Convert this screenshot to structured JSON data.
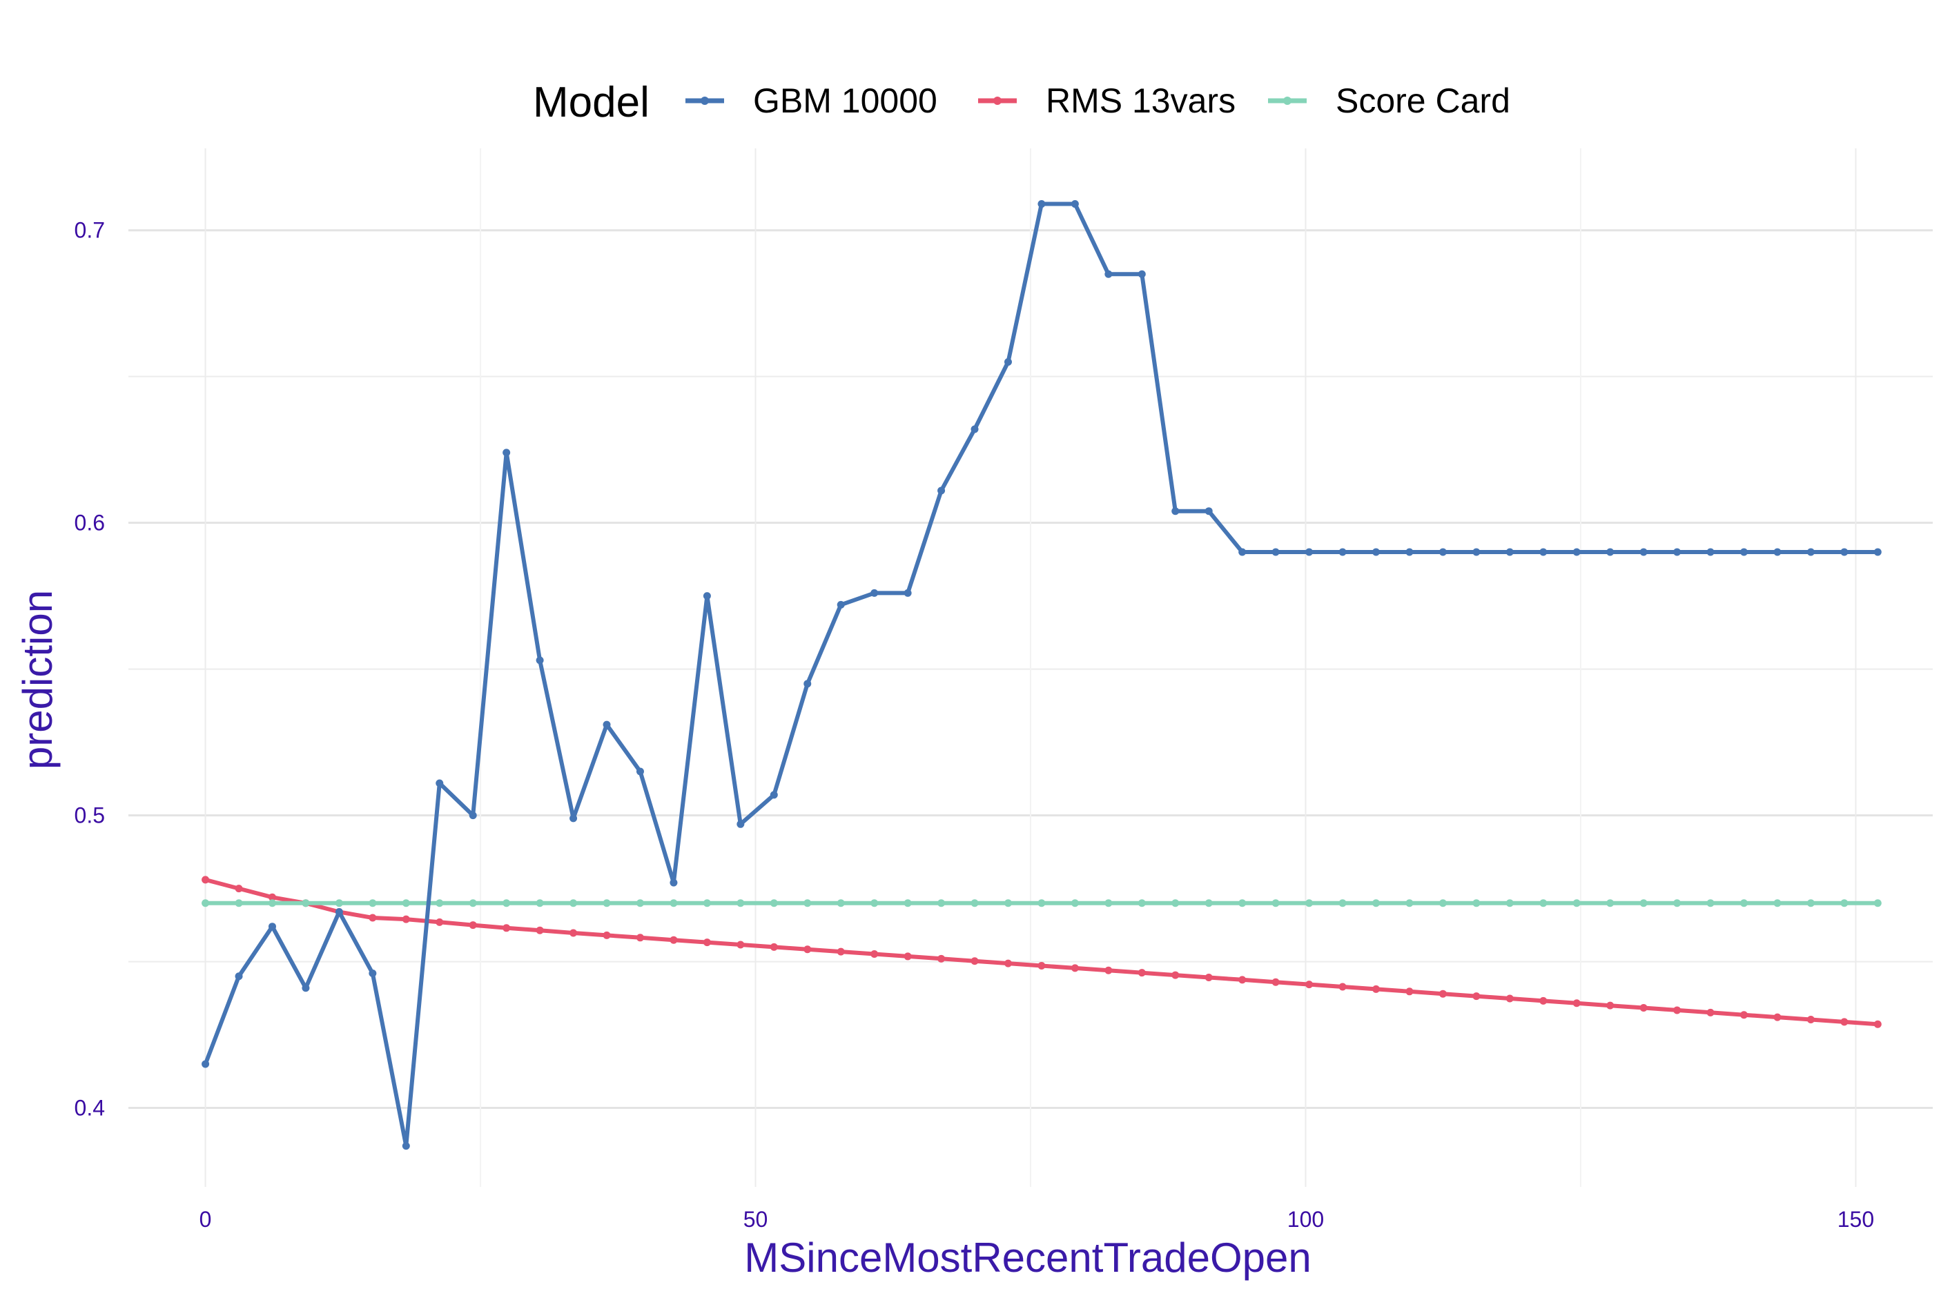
{
  "chart_data": {
    "type": "line",
    "title": "",
    "xlabel": "MSinceMostRecentTradeOpen",
    "ylabel": "prediction",
    "xlim": [
      -7,
      157
    ],
    "ylim": [
      0.373,
      0.728
    ],
    "x_ticks": [
      0,
      50,
      100,
      150
    ],
    "x_tick_labels": [
      "0",
      "50",
      "100",
      "150"
    ],
    "y_ticks": [
      0.4,
      0.5,
      0.6,
      0.7
    ],
    "y_tick_labels": [
      "0.4",
      "0.5",
      "0.6",
      "0.7"
    ],
    "grid": true,
    "legend": {
      "title": "Model",
      "position": "top"
    },
    "x": [
      0,
      3.04,
      6.08,
      9.12,
      12.16,
      15.2,
      18.24,
      21.28,
      24.32,
      27.36,
      30.4,
      33.44,
      36.48,
      39.52,
      42.56,
      45.6,
      48.64,
      51.68,
      54.72,
      57.76,
      60.8,
      63.84,
      66.88,
      69.92,
      72.96,
      76,
      79.04,
      82.08,
      85.12,
      88.16,
      91.2,
      94.24,
      97.28,
      100.32,
      103.36,
      106.4,
      109.44,
      112.48,
      115.52,
      118.56,
      121.6,
      124.64,
      127.68,
      130.72,
      133.76,
      136.8,
      139.84,
      142.88,
      145.92,
      148.96,
      152
    ],
    "series": [
      {
        "name": "GBM 10000",
        "color": "#4575b4",
        "values": [
          0.415,
          0.445,
          0.462,
          0.441,
          0.467,
          0.446,
          0.387,
          0.511,
          0.5,
          0.624,
          0.553,
          0.499,
          0.531,
          0.515,
          0.477,
          0.575,
          0.497,
          0.507,
          0.545,
          0.572,
          0.576,
          0.576,
          0.611,
          0.632,
          0.655,
          0.709,
          0.709,
          0.685,
          0.685,
          0.604,
          0.604,
          0.59,
          0.59,
          0.59,
          0.59,
          0.59,
          0.59,
          0.59,
          0.59,
          0.59,
          0.59,
          0.59,
          0.59,
          0.59,
          0.59,
          0.59,
          0.59,
          0.59,
          0.59,
          0.59,
          0.59
        ]
      },
      {
        "name": "RMS 13vars",
        "color": "#e8526e",
        "values": [
          0.478,
          0.475,
          0.472,
          0.47,
          0.467,
          0.465,
          0.4645,
          0.4635,
          0.4625,
          0.4615,
          0.4607,
          0.4598,
          0.459,
          0.4582,
          0.4574,
          0.4566,
          0.4558,
          0.455,
          0.4542,
          0.4534,
          0.4526,
          0.4518,
          0.451,
          0.4502,
          0.4494,
          0.4486,
          0.4478,
          0.447,
          0.4462,
          0.4454,
          0.4446,
          0.4438,
          0.443,
          0.4422,
          0.4414,
          0.4406,
          0.4398,
          0.439,
          0.4382,
          0.4374,
          0.4366,
          0.4358,
          0.435,
          0.4342,
          0.4334,
          0.4326,
          0.4318,
          0.431,
          0.4302,
          0.4294,
          0.4286
        ]
      },
      {
        "name": "Score Card",
        "color": "#85d4b8",
        "values": [
          0.47,
          0.47,
          0.47,
          0.47,
          0.47,
          0.47,
          0.47,
          0.47,
          0.47,
          0.47,
          0.47,
          0.47,
          0.47,
          0.47,
          0.47,
          0.47,
          0.47,
          0.47,
          0.47,
          0.47,
          0.47,
          0.47,
          0.47,
          0.47,
          0.47,
          0.47,
          0.47,
          0.47,
          0.47,
          0.47,
          0.47,
          0.47,
          0.47,
          0.47,
          0.47,
          0.47,
          0.47,
          0.47,
          0.47,
          0.47,
          0.47,
          0.47,
          0.47,
          0.47,
          0.47,
          0.47,
          0.47,
          0.47,
          0.47,
          0.47,
          0.47
        ]
      }
    ]
  }
}
